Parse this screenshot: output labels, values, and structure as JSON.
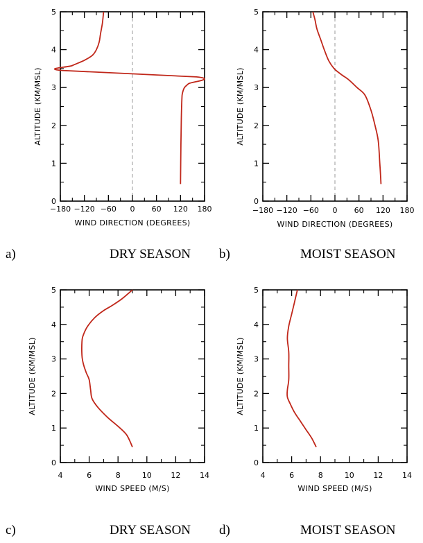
{
  "chart_data": [
    {
      "id": "a",
      "type": "line",
      "caption_letter": "a)",
      "caption_title": "DRY SEASON",
      "xlabel": "WIND DIRECTION (DEGREES)",
      "ylabel": "ALTITUDE (KM/MSL)",
      "xlim": [
        -180,
        180
      ],
      "ylim": [
        0,
        5
      ],
      "xticks": [
        -180,
        -120,
        -60,
        0,
        60,
        120,
        180
      ],
      "yticks": [
        0,
        1,
        2,
        3,
        4,
        5
      ],
      "xtick_labels": [
        "−180",
        "−120",
        "−60",
        "0",
        "60",
        "120",
        "180"
      ],
      "ytick_labels": [
        "0",
        "1",
        "2",
        "3",
        "4",
        "5"
      ],
      "reference_line_x": 0,
      "series": [
        {
          "color": "#c0271a",
          "x": [
            120,
            121,
            122,
            123,
            124,
            126,
            130,
            140,
            160,
            -175,
            -150,
            -120,
            -100,
            -90,
            -83,
            -80,
            -75,
            -72
          ],
          "y": [
            0.45,
            1.5,
            2.2,
            2.6,
            2.8,
            2.9,
            3.0,
            3.1,
            3.28,
            3.45,
            3.58,
            3.72,
            3.85,
            4.0,
            4.2,
            4.4,
            4.7,
            5.0
          ]
        }
      ]
    },
    {
      "id": "b",
      "type": "line",
      "caption_letter": "b)",
      "caption_title": "MOIST SEASON",
      "xlabel": "WIND DIRECTION (DEGREES)",
      "ylabel": "ALTITUDE (KM/MSL)",
      "xlim": [
        -180,
        180
      ],
      "ylim": [
        0,
        5
      ],
      "xticks": [
        -180,
        -120,
        -60,
        0,
        60,
        120,
        180
      ],
      "yticks": [
        0,
        1,
        2,
        3,
        4,
        5
      ],
      "xtick_labels": [
        "−180",
        "−120",
        "−60",
        "0",
        "60",
        "120",
        "180"
      ],
      "ytick_labels": [
        "0",
        "1",
        "2",
        "3",
        "4",
        "5"
      ],
      "reference_line_x": 0,
      "series": [
        {
          "color": "#c0271a",
          "x": [
            115,
            112,
            108,
            100,
            90,
            75,
            55,
            35,
            15,
            -2,
            -15,
            -25,
            -35,
            -45,
            -50,
            -55
          ],
          "y": [
            0.45,
            1.0,
            1.6,
            2.0,
            2.4,
            2.8,
            3.0,
            3.2,
            3.35,
            3.5,
            3.7,
            3.95,
            4.25,
            4.55,
            4.8,
            5.0
          ]
        }
      ]
    },
    {
      "id": "c",
      "type": "line",
      "caption_letter": "c)",
      "caption_title": "DRY SEASON",
      "xlabel": "WIND SPEED (M/S)",
      "ylabel": "ALTITUDE (KM/MSL)",
      "xlim": [
        4,
        14
      ],
      "ylim": [
        0,
        5
      ],
      "xticks": [
        4,
        6,
        8,
        10,
        12,
        14
      ],
      "yticks": [
        0,
        1,
        2,
        3,
        4,
        5
      ],
      "xtick_labels": [
        "4",
        "6",
        "8",
        "10",
        "12",
        "14"
      ],
      "ytick_labels": [
        "0",
        "1",
        "2",
        "3",
        "4",
        "5"
      ],
      "series": [
        {
          "color": "#c0271a",
          "x": [
            9.0,
            8.6,
            8.0,
            7.3,
            6.6,
            6.2,
            6.1,
            6.0,
            5.8,
            5.6,
            5.5,
            5.5,
            5.6,
            5.9,
            6.4,
            7.0,
            7.6,
            8.3,
            9.0
          ],
          "y": [
            0.45,
            0.8,
            1.05,
            1.3,
            1.6,
            1.85,
            2.1,
            2.4,
            2.6,
            2.85,
            3.1,
            3.5,
            3.7,
            3.95,
            4.2,
            4.4,
            4.55,
            4.75,
            5.0
          ]
        }
      ]
    },
    {
      "id": "d",
      "type": "line",
      "caption_letter": "d)",
      "caption_title": "MOIST SEASON",
      "xlabel": "WIND SPEED (M/S)",
      "ylabel": "ALTITUDE (KM/MSL)",
      "xlim": [
        4,
        14
      ],
      "ylim": [
        0,
        5
      ],
      "xticks": [
        4,
        6,
        8,
        10,
        12,
        14
      ],
      "yticks": [
        0,
        1,
        2,
        3,
        4,
        5
      ],
      "xtick_labels": [
        "4",
        "6",
        "8",
        "10",
        "12",
        "14"
      ],
      "ytick_labels": [
        "0",
        "1",
        "2",
        "3",
        "4",
        "5"
      ],
      "series": [
        {
          "color": "#c0271a",
          "x": [
            7.7,
            7.4,
            7.0,
            6.6,
            6.2,
            5.9,
            5.7,
            5.7,
            5.8,
            5.8,
            5.8,
            5.7,
            5.8,
            6.0,
            6.2,
            6.4
          ],
          "y": [
            0.45,
            0.7,
            0.95,
            1.2,
            1.45,
            1.7,
            1.9,
            2.1,
            2.4,
            2.8,
            3.2,
            3.6,
            3.95,
            4.3,
            4.65,
            5.0
          ]
        }
      ]
    }
  ]
}
